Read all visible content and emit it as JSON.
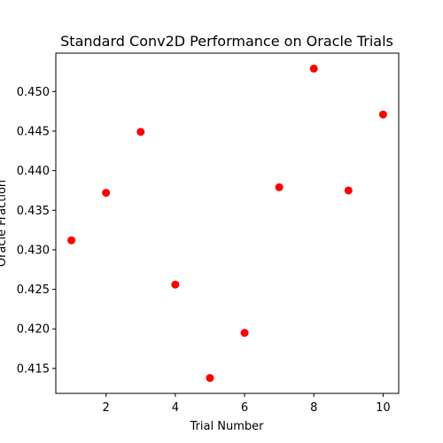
{
  "chart_data": {
    "type": "scatter",
    "title": "Standard Conv2D Performance on Oracle Trials",
    "xlabel": "Trial Number",
    "ylabel": "Oracle Fraction",
    "x": [
      1,
      2,
      3,
      4,
      5,
      6,
      7,
      8,
      9,
      10
    ],
    "y": [
      0.4312,
      0.4372,
      0.4449,
      0.4256,
      0.4138,
      0.4195,
      0.4379,
      0.4529,
      0.4375,
      0.4471
    ],
    "xlim": [
      0.55,
      10.45
    ],
    "ylim": [
      0.41185,
      0.45485
    ],
    "xticks": [
      2,
      4,
      6,
      8,
      10
    ],
    "xtick_labels": [
      "2",
      "4",
      "6",
      "8",
      "10"
    ],
    "yticks": [
      0.415,
      0.42,
      0.425,
      0.43,
      0.435,
      0.44,
      0.445,
      0.45
    ],
    "ytick_labels": [
      "0.415",
      "0.420",
      "0.425",
      "0.430",
      "0.435",
      "0.440",
      "0.445",
      "0.450"
    ],
    "marker_color": "#ff0000",
    "grid": false,
    "legend": "none"
  }
}
